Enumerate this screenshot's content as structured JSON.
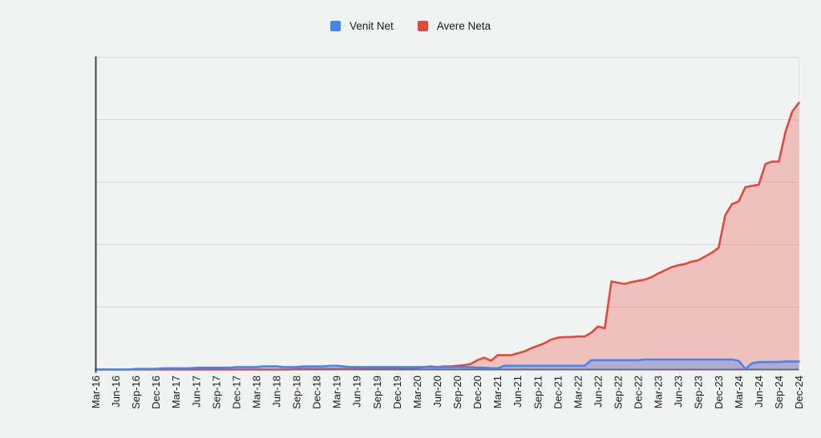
{
  "colors": {
    "background": "#f1f2f2",
    "gridline": "#d9d9d9",
    "right_border": "#e4e4e4",
    "axis_left": "#424242",
    "axis_bottom": "#5f6368",
    "label_text": "#1a1a1a",
    "legend_text": "#1a1a1a"
  },
  "chart_data": {
    "type": "area",
    "title": "",
    "xlabel": "",
    "ylabel": "",
    "x_unit": "month",
    "label_every_n_points": 3,
    "grid": true,
    "y_axis_labels_visible": false,
    "legend_position": "top",
    "ylim": [
      0,
      5
    ],
    "y_gridline_step": 1,
    "categories": [
      "Mar-16",
      "Jun-16",
      "Sep-16",
      "Dec-16",
      "Mar-17",
      "Jun-17",
      "Sep-17",
      "Dec-17",
      "Mar-18",
      "Jun-18",
      "Sep-18",
      "Dec-18",
      "Mar-19",
      "Jun-19",
      "Sep-19",
      "Dec-19",
      "Mar-20",
      "Jun-20",
      "Sep-20",
      "Dec-20",
      "Mar-21",
      "Jun-21",
      "Sep-21",
      "Dec-21",
      "Mar-22",
      "Jun-22",
      "Sep-22",
      "Dec-22",
      "Mar-23",
      "Jun-23",
      "Sep-23",
      "Dec-23",
      "Mar-24",
      "Jun-24",
      "Sep-24",
      "Dec-24"
    ],
    "value_unit": "relative (1.0 = one horizontal gridline interval; y axis unlabeled in source)",
    "series": [
      {
        "name": "Venit Net",
        "color": "#4285f4",
        "fill": "rgba(66,133,244,0.35)",
        "values": [
          0,
          0,
          0,
          0,
          0,
          0,
          0.01,
          0.01,
          0.01,
          0.01,
          0.02,
          0.02,
          0.02,
          0.02,
          0.02,
          0.03,
          0.03,
          0.03,
          0.03,
          0.03,
          0.03,
          0.04,
          0.04,
          0.04,
          0.04,
          0.05,
          0.05,
          0.05,
          0.04,
          0.04,
          0.04,
          0.05,
          0.05,
          0.05,
          0.05,
          0.06,
          0.06,
          0.05,
          0.04,
          0.04,
          0.04,
          0.04,
          0.04,
          0.04,
          0.04,
          0.04,
          0.04,
          0.04,
          0.04,
          0.04,
          0.04,
          0.04,
          0.04,
          0.04,
          0.04,
          0.04,
          0.04,
          0.03,
          0.03,
          0.02,
          0.02,
          0.06,
          0.06,
          0.06,
          0.06,
          0.06,
          0.06,
          0.06,
          0.06,
          0.06,
          0.06,
          0.06,
          0.06,
          0.06,
          0.15,
          0.15,
          0.15,
          0.15,
          0.15,
          0.15,
          0.15,
          0.15,
          0.16,
          0.16,
          0.16,
          0.16,
          0.16,
          0.16,
          0.16,
          0.16,
          0.16,
          0.16,
          0.16,
          0.16,
          0.16,
          0.16,
          0.14,
          0.01,
          0.1,
          0.12,
          0.12,
          0.12,
          0.12,
          0.13,
          0.13,
          0.13
        ]
      },
      {
        "name": "Avere Neta",
        "color": "#e5473b",
        "fill": "rgba(229,69,55,0.28)",
        "values": [
          0,
          0,
          0,
          0,
          0,
          0,
          0,
          0,
          0,
          0,
          0,
          0,
          0,
          0,
          0,
          0,
          0,
          0,
          0,
          0,
          0,
          0,
          0,
          0,
          0,
          0,
          0,
          0,
          0,
          0,
          0.01,
          0.01,
          0.01,
          0.01,
          0.01,
          0.01,
          0.01,
          0.01,
          0.01,
          0.01,
          0.02,
          0.02,
          0.02,
          0.02,
          0.02,
          0.02,
          0.03,
          0.03,
          0.03,
          0.04,
          0.05,
          0.04,
          0.05,
          0.05,
          0.06,
          0.07,
          0.09,
          0.15,
          0.19,
          0.14,
          0.23,
          0.23,
          0.23,
          0.26,
          0.29,
          0.34,
          0.38,
          0.42,
          0.48,
          0.51,
          0.52,
          0.52,
          0.53,
          0.53,
          0.59,
          0.69,
          0.66,
          1.41,
          1.39,
          1.37,
          1.4,
          1.42,
          1.44,
          1.48,
          1.54,
          1.59,
          1.64,
          1.67,
          1.69,
          1.73,
          1.75,
          1.81,
          1.87,
          1.95,
          2.47,
          2.65,
          2.69,
          2.92,
          2.94,
          2.96,
          3.29,
          3.33,
          3.33,
          3.81,
          4.13,
          4.27
        ]
      }
    ]
  }
}
